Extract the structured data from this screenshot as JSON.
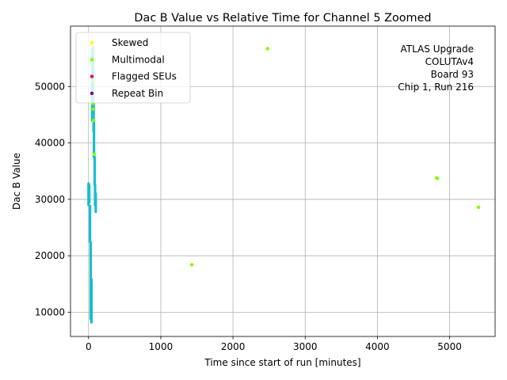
{
  "chart_data": {
    "type": "scatter",
    "title": "Dac B Value vs Relative Time for Channel 5 Zoomed",
    "xlabel": "Time since start of run [minutes]",
    "ylabel": "Dac B Value",
    "xlim": [
      -250,
      5630
    ],
    "ylim": [
      5700,
      60700
    ],
    "xticks": [
      0,
      1000,
      2000,
      3000,
      4000,
      5000
    ],
    "yticks": [
      10000,
      20000,
      30000,
      40000,
      50000
    ],
    "grid": true,
    "legend_position": "top-left",
    "annotation": [
      "ATLAS Upgrade",
      "COLUTAv4",
      "Board 93",
      "Chip 1, Run 216"
    ],
    "colors": {
      "skewed": "#ffff00",
      "multimodal": "#7fff00",
      "flagged": "#dc143c",
      "repeat": "#800080",
      "bulk": "#17becf",
      "grid": "#b0b0b0"
    },
    "series": [
      {
        "name": "Skewed",
        "color": "#ffff00",
        "points": [
          [
            30,
            57200
          ],
          [
            35,
            57000
          ]
        ]
      },
      {
        "name": "Multimodal",
        "color": "#7fff00",
        "points": [
          [
            1430,
            18400
          ],
          [
            2480,
            56700
          ],
          [
            4820,
            33800
          ],
          [
            4830,
            33700
          ],
          [
            5400,
            28600
          ],
          [
            35,
            54000
          ],
          [
            45,
            51000
          ],
          [
            55,
            47000
          ],
          [
            60,
            46000
          ],
          [
            70,
            44000
          ],
          [
            80,
            38000
          ]
        ]
      },
      {
        "name": "Flagged SEUs",
        "color": "#dc143c",
        "points": []
      },
      {
        "name": "Repeat Bin",
        "color": "#800080",
        "points": []
      }
    ],
    "bulk_segments": [
      {
        "x": 0,
        "y_min": 29000,
        "y_max": 32800
      },
      {
        "x": 10,
        "y_min": 29500,
        "y_max": 32500
      },
      {
        "x": 20,
        "y_min": 22500,
        "y_max": 28800
      },
      {
        "x": 30,
        "y_min": 8800,
        "y_max": 22300
      },
      {
        "x": 40,
        "y_min": 8200,
        "y_max": 15800
      },
      {
        "x": 50,
        "y_min": 44000,
        "y_max": 57200
      },
      {
        "x": 60,
        "y_min": 45500,
        "y_max": 57000
      },
      {
        "x": 70,
        "y_min": 42000,
        "y_max": 47000
      },
      {
        "x": 75,
        "y_min": 37500,
        "y_max": 43500
      },
      {
        "x": 85,
        "y_min": 32500,
        "y_max": 37500
      },
      {
        "x": 90,
        "y_min": 29000,
        "y_max": 32500
      },
      {
        "x": 100,
        "y_min": 27800,
        "y_max": 31000
      }
    ]
  }
}
